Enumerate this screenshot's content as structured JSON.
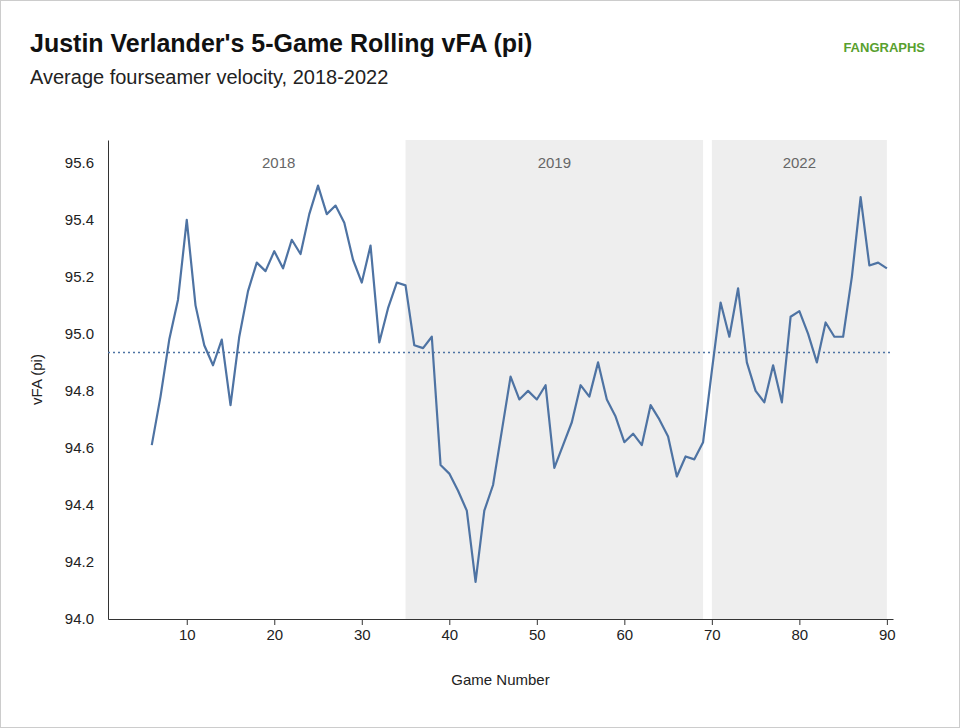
{
  "chart_data": {
    "type": "line",
    "title": "Justin Verlander's 5-Game Rolling vFA (pi)",
    "subtitle": "Average fourseamer velocity, 2018-2022",
    "source": "FANGRAPHS",
    "x_label": "Game Number",
    "y_label": "vFA (pi)",
    "x": [
      6,
      7,
      8,
      9,
      10,
      11,
      12,
      13,
      14,
      15,
      16,
      17,
      18,
      19,
      20,
      21,
      22,
      23,
      24,
      25,
      26,
      27,
      28,
      29,
      30,
      31,
      32,
      33,
      34,
      35,
      36,
      37,
      38,
      39,
      40,
      41,
      42,
      43,
      44,
      45,
      46,
      47,
      48,
      49,
      50,
      51,
      52,
      53,
      54,
      55,
      56,
      57,
      58,
      59,
      60,
      61,
      62,
      63,
      64,
      65,
      66,
      67,
      68,
      69,
      70,
      71,
      72,
      73,
      74,
      75,
      76,
      77,
      78,
      79,
      80,
      81,
      82,
      83,
      84,
      85,
      86,
      87,
      88,
      89,
      90
    ],
    "series": [
      {
        "color": "#4e73a3",
        "values": [
          94.61,
          94.78,
          94.98,
          95.12,
          95.4,
          95.1,
          94.96,
          94.89,
          94.98,
          94.75,
          94.99,
          95.15,
          95.25,
          95.22,
          95.29,
          95.23,
          95.33,
          95.28,
          95.42,
          95.52,
          95.42,
          95.45,
          95.39,
          95.26,
          95.18,
          95.31,
          94.97,
          95.09,
          95.18,
          95.17,
          94.96,
          94.95,
          94.99,
          94.54,
          94.51,
          94.45,
          94.38,
          94.13,
          94.38,
          94.47,
          94.66,
          94.85,
          94.77,
          94.8,
          94.77,
          94.82,
          94.53,
          94.61,
          94.69,
          94.82,
          94.78,
          94.9,
          94.77,
          94.71,
          94.62,
          94.65,
          94.61,
          94.75,
          94.7,
          94.64,
          94.5,
          94.57,
          94.56,
          94.62,
          94.87,
          95.11,
          94.99,
          95.16,
          94.9,
          94.8,
          94.76,
          94.89,
          94.76,
          95.06,
          95.08,
          95.0,
          94.9,
          95.04,
          94.99,
          94.99,
          95.2,
          95.48,
          95.24,
          95.25,
          95.23
        ]
      }
    ],
    "average": {
      "value": 94.935,
      "color": "#4e73a3",
      "line_style": "dotted"
    },
    "periods": [
      {
        "label": "2018",
        "x0": 6,
        "x1": 35
      },
      {
        "label": "2019",
        "x0": 35,
        "x1": 69,
        "color": "#eeeeee"
      },
      {
        "label": "2022",
        "x0": 70,
        "x1": 90,
        "color": "#eeeeee"
      }
    ],
    "xlim": [
      1,
      90.7
    ],
    "xticks": [
      10,
      20,
      30,
      40,
      50,
      60,
      70,
      80,
      90
    ],
    "ylim": [
      94.0,
      95.68
    ],
    "yticks": [
      {
        "value": 94.0,
        "label": "94.0"
      },
      94.2,
      94.4,
      94.6,
      94.8,
      {
        "value": 95.0,
        "label": "95.0"
      },
      95.2,
      95.4,
      95.6
    ],
    "grid": false,
    "legend": false
  }
}
